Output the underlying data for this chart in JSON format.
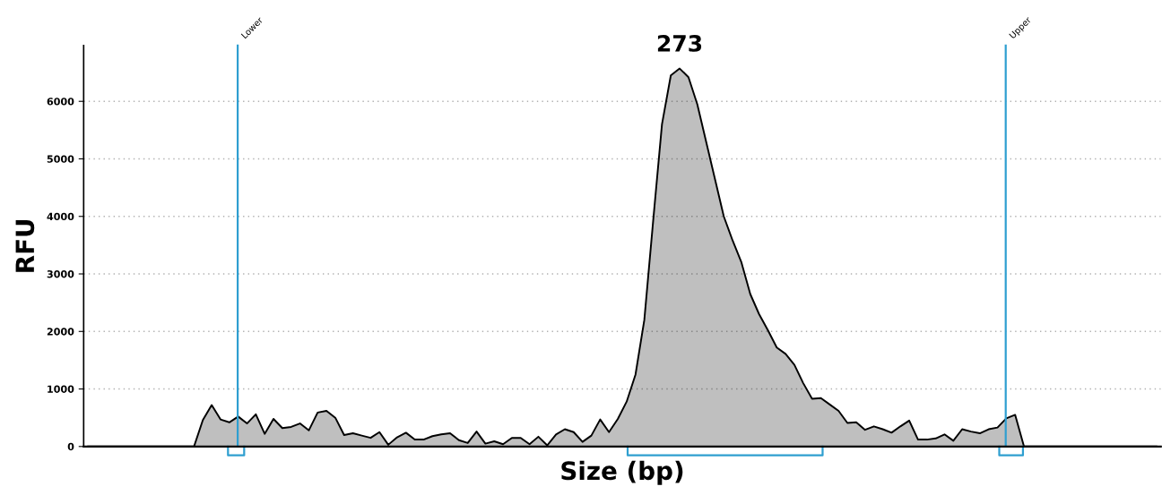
{
  "chart_data": {
    "type": "area",
    "xlabel": "Size (bp)",
    "ylabel": "RFU",
    "categories": [
      null,
      null,
      null,
      null,
      null,
      null,
      null,
      null,
      null,
      null,
      null,
      null,
      null,
      null,
      null,
      null,
      null,
      null,
      null,
      null,
      null,
      null,
      null,
      null,
      null,
      null,
      null,
      null,
      null,
      null,
      null,
      null,
      null,
      null,
      null,
      null,
      null,
      null,
      null,
      null,
      null,
      null,
      null,
      null,
      null,
      null,
      null,
      null,
      null,
      null,
      null,
      null,
      null,
      null,
      null,
      null,
      null,
      null,
      null,
      null,
      null,
      null,
      null,
      null,
      null,
      null,
      null,
      null,
      null,
      null,
      null,
      null,
      null,
      null,
      null,
      null,
      null,
      null,
      null,
      null,
      null,
      null,
      null,
      null,
      null,
      null,
      null,
      null,
      null,
      null,
      null,
      null,
      null,
      null,
      null,
      null,
      null,
      null,
      null,
      null,
      null,
      null,
      null,
      null,
      null,
      null,
      null,
      null,
      null,
      null,
      null,
      null,
      null,
      null,
      null,
      null,
      null,
      null,
      null,
      null,
      null,
      null
    ],
    "ylim": [
      0,
      6970
    ],
    "yticks": [
      0,
      1000,
      2000,
      3000,
      4000,
      5000,
      6000
    ],
    "grid": "y",
    "series": [
      {
        "color": "#000000",
        "values": [
          0,
          0,
          0,
          0,
          0,
          0,
          0,
          0,
          0,
          0,
          0,
          0,
          0,
          460,
          720,
          470,
          420,
          520,
          400,
          560,
          220,
          480,
          320,
          340,
          400,
          280,
          590,
          620,
          500,
          200,
          230,
          190,
          150,
          250,
          30,
          160,
          240,
          120,
          120,
          180,
          210,
          230,
          110,
          60,
          260,
          50,
          90,
          40,
          150,
          150,
          40,
          170,
          20,
          210,
          300,
          250,
          80,
          190,
          470,
          250,
          480,
          780,
          1250,
          2200,
          3920,
          5600,
          6450,
          6570,
          6420,
          5950,
          5300,
          4650,
          4000,
          3580,
          3200,
          2650,
          2300,
          2020,
          1720,
          1610,
          1420,
          1100,
          830,
          840,
          730,
          620,
          410,
          420,
          290,
          350,
          300,
          240,
          350,
          450,
          120,
          120,
          140,
          210,
          100,
          300,
          260,
          230,
          300,
          330,
          490,
          550,
          0,
          0,
          0,
          0,
          0,
          0,
          0,
          0,
          0,
          0,
          0,
          0,
          0,
          0,
          0,
          0
        ]
      }
    ],
    "annotations": [
      {
        "text": "273",
        "y": 6570
      },
      "Lower",
      "Upper"
    ]
  }
}
